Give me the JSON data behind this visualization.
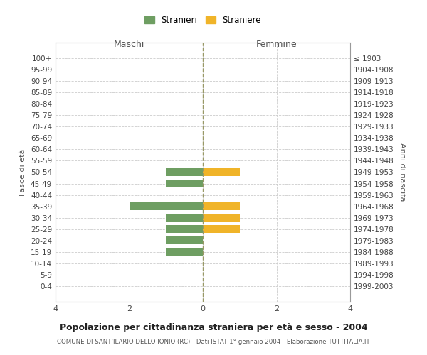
{
  "age_groups": [
    "100+",
    "95-99",
    "90-94",
    "85-89",
    "80-84",
    "75-79",
    "70-74",
    "65-69",
    "60-64",
    "55-59",
    "50-54",
    "45-49",
    "40-44",
    "35-39",
    "30-34",
    "25-29",
    "20-24",
    "15-19",
    "10-14",
    "5-9",
    "0-4"
  ],
  "birth_years": [
    "≤ 1903",
    "1904-1908",
    "1909-1913",
    "1914-1918",
    "1919-1923",
    "1924-1928",
    "1929-1933",
    "1934-1938",
    "1939-1943",
    "1944-1948",
    "1949-1953",
    "1954-1958",
    "1959-1963",
    "1964-1968",
    "1969-1973",
    "1974-1978",
    "1979-1983",
    "1984-1988",
    "1989-1993",
    "1994-1998",
    "1999-2003"
  ],
  "maschi": [
    0,
    0,
    0,
    0,
    0,
    0,
    0,
    0,
    0,
    0,
    -1,
    -1,
    0,
    -2,
    -1,
    -1,
    -1,
    -1,
    0,
    0,
    0
  ],
  "femmine": [
    0,
    0,
    0,
    0,
    0,
    0,
    0,
    0,
    0,
    0,
    1,
    0,
    0,
    1,
    1,
    1,
    0,
    0,
    0,
    0,
    0
  ],
  "color_maschi": "#6e9e62",
  "color_femmine": "#f0b429",
  "title": "Popolazione per cittadinanza straniera per età e sesso - 2004",
  "subtitle": "COMUNE DI SANT'ILARIO DELLO IONIO (RC) - Dati ISTAT 1° gennaio 2004 - Elaborazione TUTTITALIA.IT",
  "xlabel_maschi": "Maschi",
  "xlabel_femmine": "Femmine",
  "ylabel_left": "Fasce di età",
  "ylabel_right": "Anni di nascita",
  "legend_maschi": "Stranieri",
  "legend_femmine": "Straniere",
  "xlim": 4,
  "bar_height": 0.7,
  "background_color": "#ffffff",
  "grid_color": "#cccccc",
  "axis_color": "#999999"
}
